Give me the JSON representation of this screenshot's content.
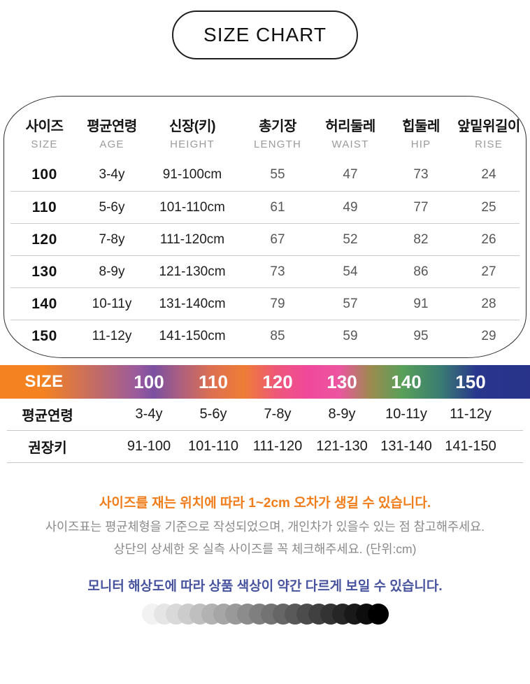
{
  "title": "SIZE CHART",
  "measure_table": {
    "columns": [
      {
        "ko": "사이즈",
        "en": "SIZE"
      },
      {
        "ko": "평균연령",
        "en": "AGE"
      },
      {
        "ko": "신장(키)",
        "en": "HEIGHT"
      },
      {
        "ko": "총기장",
        "en": "LENGTH"
      },
      {
        "ko": "허리둘레",
        "en": "WAIST"
      },
      {
        "ko": "힙둘레",
        "en": "HIP"
      },
      {
        "ko": "앞밑위길이",
        "en": "RISE"
      }
    ],
    "rows": [
      [
        "100",
        "3-4y",
        "91-100cm",
        "55",
        "47",
        "73",
        "24"
      ],
      [
        "110",
        "5-6y",
        "101-110cm",
        "61",
        "49",
        "77",
        "25"
      ],
      [
        "120",
        "7-8y",
        "111-120cm",
        "67",
        "52",
        "82",
        "26"
      ],
      [
        "130",
        "8-9y",
        "121-130cm",
        "73",
        "54",
        "86",
        "27"
      ],
      [
        "140",
        "10-11y",
        "131-140cm",
        "79",
        "57",
        "91",
        "28"
      ],
      [
        "150",
        "11-12y",
        "141-150cm",
        "85",
        "59",
        "95",
        "29"
      ]
    ]
  },
  "summary_table": {
    "size_label": "SIZE",
    "sizes": [
      "100",
      "110",
      "120",
      "130",
      "140",
      "150"
    ],
    "rows": [
      {
        "label": "평균연령",
        "values": [
          "3-4y",
          "5-6y",
          "7-8y",
          "8-9y",
          "10-11y",
          "11-12y"
        ]
      },
      {
        "label": "권장키",
        "values": [
          "91-100",
          "101-110",
          "111-120",
          "121-130",
          "131-140",
          "141-150"
        ]
      }
    ],
    "gradient_stops": [
      "#F58220 0%",
      "#F58220 8%",
      "#9A5A9E 26%",
      "#7B50A0 29%",
      "#AC5F7F 34%",
      "#DD7050 40%",
      "#EE7D36 46%",
      "#EE5878 52%",
      "#F0489B 58%",
      "#EC55A0 64%",
      "#9B8B4E 70%",
      "#58A05A 76%",
      "#3A7D72 83%",
      "#29368D 90%",
      "#283389 100%"
    ]
  },
  "notices": {
    "tolerance": "사이즈를 재는 위치에 따라  1~2cm 오차가 생길 수 있습니다.",
    "body_line1": "사이즈표는 평균체형을 기준으로 작성되었으며, 개인차가 있을수 있는 점 참고해주세요.",
    "body_line2": "상단의 상세한 옷 실측 사이즈를 꼭 체크해주세요. (단위:cm)",
    "monitor": "모니터 해상도에 따라 상품 색상이 약간 다르게 보일 수 있습니다."
  },
  "monitor_strip": {
    "count": 20,
    "from": "#F2F2F2",
    "to": "#000000"
  },
  "colors": {
    "notice_orange": "#F07D1A",
    "notice_gray": "#8A8A8A",
    "notice_navy": "#47539E",
    "table_border": "#2F2F2F",
    "divider": "#CCCCCC",
    "header_en": "#9B9B9B"
  }
}
